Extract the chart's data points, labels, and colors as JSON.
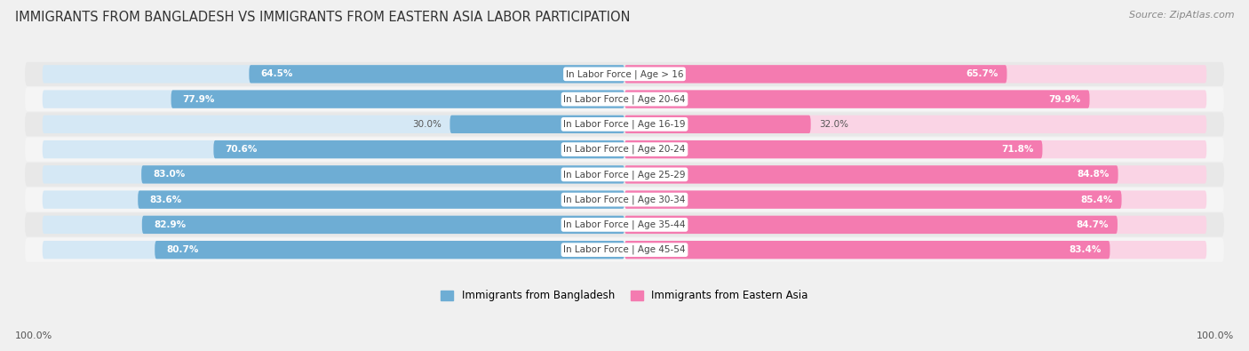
{
  "title": "IMMIGRANTS FROM BANGLADESH VS IMMIGRANTS FROM EASTERN ASIA LABOR PARTICIPATION",
  "source": "Source: ZipAtlas.com",
  "categories": [
    "In Labor Force | Age > 16",
    "In Labor Force | Age 20-64",
    "In Labor Force | Age 16-19",
    "In Labor Force | Age 20-24",
    "In Labor Force | Age 25-29",
    "In Labor Force | Age 30-34",
    "In Labor Force | Age 35-44",
    "In Labor Force | Age 45-54"
  ],
  "bangladesh_values": [
    64.5,
    77.9,
    30.0,
    70.6,
    83.0,
    83.6,
    82.9,
    80.7
  ],
  "eastern_asia_values": [
    65.7,
    79.9,
    32.0,
    71.8,
    84.8,
    85.4,
    84.7,
    83.4
  ],
  "bangladesh_color": "#6eadd4",
  "eastern_asia_color": "#f47bb0",
  "bangladesh_color_light": "#d5e8f5",
  "eastern_asia_color_light": "#fad4e5",
  "background_color": "#f0f0f0",
  "row_bg_even": "#e8e8e8",
  "row_bg_odd": "#f5f5f5",
  "legend_bangladesh": "Immigrants from Bangladesh",
  "legend_eastern_asia": "Immigrants from Eastern Asia",
  "max_value": 100.0,
  "title_fontsize": 10.5,
  "source_fontsize": 8,
  "value_fontsize": 7.5,
  "category_fontsize": 7.5,
  "legend_fontsize": 8.5
}
